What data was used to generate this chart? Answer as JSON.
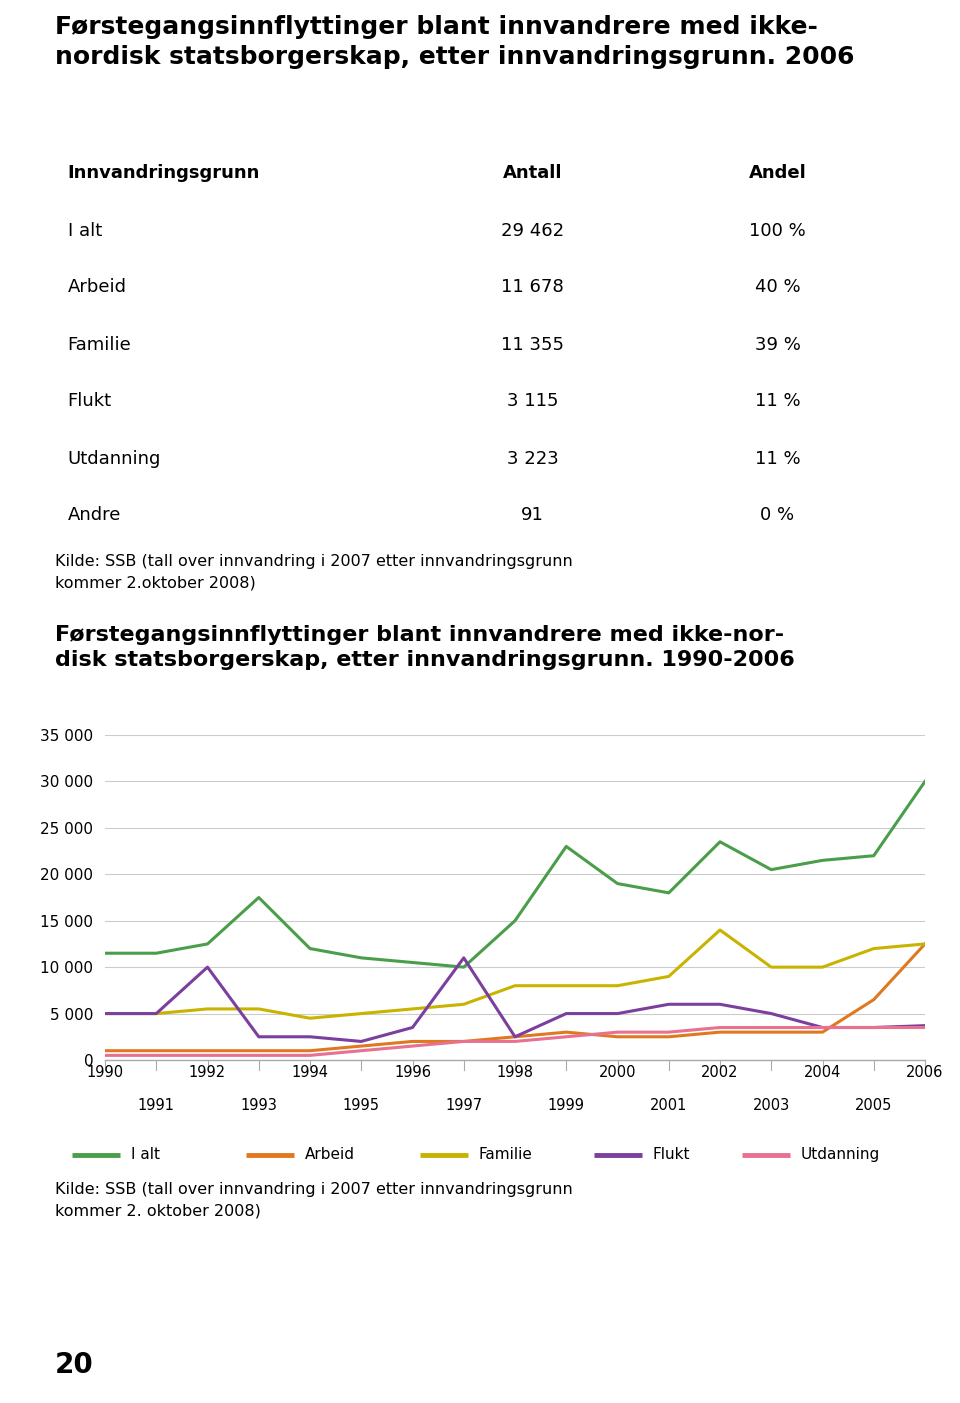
{
  "title1": "Førstegangsinnflyttinger blant innvandrere med ikke-\nnordisk statsborgerskap, etter innvandringsgrunn. 2006",
  "title2": "Førstegangsinnflyttinger blant innvandrere med ikke-nor-\ndisk statsborgerskap, etter innvandringsgrunn. 1990-2006",
  "table_header": [
    "Innvandringsgrunn",
    "Antall",
    "Andel"
  ],
  "table_rows": [
    [
      "I alt",
      "29 462",
      "100 %"
    ],
    [
      "Arbeid",
      "11 678",
      "40 %"
    ],
    [
      "Familie",
      "11 355",
      "39 %"
    ],
    [
      "Flukt",
      "3 115",
      "11 %"
    ],
    [
      "Utdanning",
      "3 223",
      "11 %"
    ],
    [
      "Andre",
      "91",
      "0 %"
    ]
  ],
  "source1": "Kilde: SSB (tall over innvandring i 2007 etter innvandringsgrunn\nkommer 2.oktober 2008)",
  "source2": "Kilde: SSB (tall over innvandring i 2007 etter innvandringsgrunn\nkommer 2. oktober 2008)",
  "page_number": "20",
  "years": [
    1990,
    1991,
    1992,
    1993,
    1994,
    1995,
    1996,
    1997,
    1998,
    1999,
    2000,
    2001,
    2002,
    2003,
    2004,
    2005,
    2006
  ],
  "i_alt": [
    11500,
    11500,
    12500,
    17500,
    12000,
    11000,
    10500,
    10000,
    15000,
    23000,
    19000,
    18000,
    23500,
    20500,
    21500,
    22000,
    30000
  ],
  "arbeid": [
    1000,
    1000,
    1000,
    1000,
    1000,
    1500,
    2000,
    2000,
    2500,
    3000,
    2500,
    2500,
    3000,
    3000,
    3000,
    6500,
    12500
  ],
  "familie": [
    5000,
    5000,
    5500,
    5500,
    4500,
    5000,
    5500,
    6000,
    8000,
    8000,
    8000,
    9000,
    14000,
    10000,
    10000,
    12000,
    12500
  ],
  "flukt": [
    5000,
    5000,
    10000,
    2500,
    2500,
    2000,
    3500,
    11000,
    2500,
    5000,
    5000,
    6000,
    6000,
    5000,
    3500,
    3500,
    3700
  ],
  "utdanning": [
    500,
    500,
    500,
    500,
    500,
    1000,
    1500,
    2000,
    2000,
    2500,
    3000,
    3000,
    3500,
    3500,
    3500,
    3500,
    3500
  ],
  "line_colors": {
    "i_alt": "#4a9e4a",
    "arbeid": "#e07820",
    "familie": "#c8b400",
    "flukt": "#7b3f9e",
    "utdanning": "#e87090"
  },
  "table_bg_header": "#c8dfc8",
  "table_bg_row1": "#ddeedd",
  "table_bg_row2": "#e8f4e8",
  "left_bar_color": "#e8c860",
  "background_color": "#ffffff",
  "ylim": [
    0,
    35000
  ],
  "yticks": [
    0,
    5000,
    10000,
    15000,
    20000,
    25000,
    30000,
    35000
  ],
  "grid_color": "#cccccc",
  "spine_color": "#aaaaaa"
}
